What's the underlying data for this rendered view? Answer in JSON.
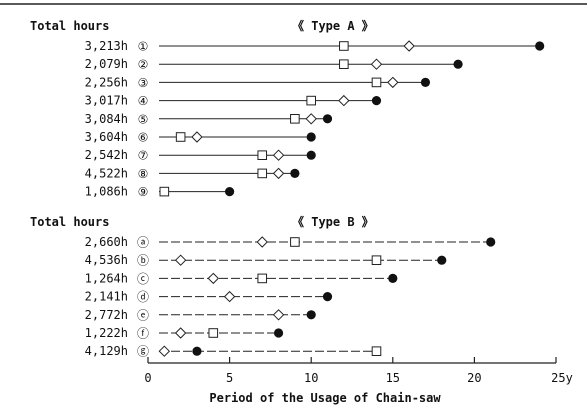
{
  "chart_data": [
    {
      "type": "scatter",
      "panel_header": "Total hours",
      "title": "《 Type  A 》",
      "xlim": [
        0,
        25
      ],
      "line_style": "solid",
      "rows": [
        {
          "hours": "3,213h",
          "id": "①",
          "square": 12,
          "diamond": 16,
          "circle": 24
        },
        {
          "hours": "2,079h",
          "id": "②",
          "square": 12,
          "diamond": 14,
          "circle": 19
        },
        {
          "hours": "2,256h",
          "id": "③",
          "square": 14,
          "diamond": 15,
          "circle": 17
        },
        {
          "hours": "3,017h",
          "id": "④",
          "square": 10,
          "diamond": 12,
          "circle": 14
        },
        {
          "hours": "3,084h",
          "id": "⑤",
          "square": 9,
          "diamond": 10,
          "circle": 11
        },
        {
          "hours": "3,604h",
          "id": "⑥",
          "square": 2,
          "diamond": 3,
          "circle": 10
        },
        {
          "hours": "2,542h",
          "id": "⑦",
          "square": 7,
          "diamond": 8,
          "circle": 10
        },
        {
          "hours": "4,522h",
          "id": "⑧",
          "square": 7,
          "diamond": 8,
          "circle": 9
        },
        {
          "hours": "1,086h",
          "id": "⑨",
          "square": 1,
          "diamond": null,
          "circle": 5
        }
      ]
    },
    {
      "type": "scatter",
      "panel_header": "Total hours",
      "title": "《 Type  B 》",
      "xlim": [
        0,
        25
      ],
      "line_style": "dashed",
      "rows": [
        {
          "hours": "2,660h",
          "id": "ⓐ",
          "square": 9,
          "diamond": 7,
          "circle": 21
        },
        {
          "hours": "4,536h",
          "id": "ⓑ",
          "square": 14,
          "diamond": 2,
          "circle": 18
        },
        {
          "hours": "1,264h",
          "id": "ⓒ",
          "square": 7,
          "diamond": 4,
          "circle": 15
        },
        {
          "hours": "2,141h",
          "id": "ⓓ",
          "square": null,
          "diamond": 5,
          "circle": 11
        },
        {
          "hours": "2,772h",
          "id": "ⓔ",
          "square": null,
          "diamond": 8,
          "circle": 10
        },
        {
          "hours": "1,222h",
          "id": "ⓕ",
          "square": 4,
          "diamond": 2,
          "circle": 8
        },
        {
          "hours": "4,129h",
          "id": "ⓖ",
          "square": 14,
          "diamond": 1,
          "circle": 3
        }
      ]
    }
  ],
  "x_axis": {
    "ticks": [
      0,
      5,
      10,
      15,
      20,
      25
    ],
    "tick_labels": [
      "0",
      "5",
      "10",
      "15",
      "20",
      "25y"
    ],
    "label": "Period of the Usage of Chain-saw"
  }
}
